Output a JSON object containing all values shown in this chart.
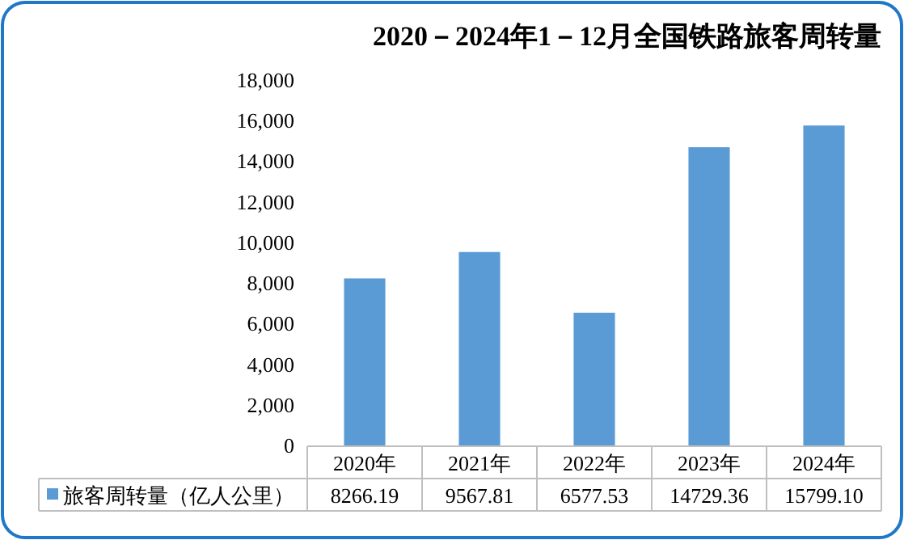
{
  "chart_data": {
    "type": "bar",
    "title": "2020－2024年1－12月全国铁路旅客周转量",
    "categories": [
      "2020年",
      "2021年",
      "2022年",
      "2023年",
      "2024年"
    ],
    "series": [
      {
        "name": "旅客周转量（亿人公里）",
        "color": "#5b9bd5",
        "values": [
          8266.19,
          9567.81,
          6577.53,
          14729.36,
          15799.1
        ],
        "value_labels": [
          "8266.19",
          "9567.81",
          "6577.53",
          "14729.36",
          "15799.10"
        ]
      }
    ],
    "ylim": [
      0,
      18000
    ],
    "yticks": [
      {
        "value": 0,
        "label": "0"
      },
      {
        "value": 2000,
        "label": "2,000"
      },
      {
        "value": 4000,
        "label": "4,000"
      },
      {
        "value": 6000,
        "label": "6,000"
      },
      {
        "value": 8000,
        "label": "8,000"
      },
      {
        "value": 10000,
        "label": "10,000"
      },
      {
        "value": 12000,
        "label": "12,000"
      },
      {
        "value": 14000,
        "label": "14,000"
      },
      {
        "value": 16000,
        "label": "16,000"
      },
      {
        "value": 18000,
        "label": "18,000"
      }
    ],
    "grid": false,
    "legend": "bottom"
  }
}
